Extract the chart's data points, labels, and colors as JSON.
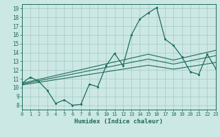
{
  "xlabel": "Humidex (Indice chaleur)",
  "background_color": "#cce8e4",
  "grid_color": "#aacccc",
  "line_color": "#1a6b5a",
  "x_data": [
    0,
    1,
    2,
    3,
    4,
    5,
    6,
    7,
    8,
    9,
    10,
    11,
    12,
    13,
    14,
    15,
    16,
    17,
    18,
    19,
    20,
    21,
    22,
    23
  ],
  "y_main": [
    10.5,
    11.2,
    10.7,
    9.7,
    8.2,
    8.6,
    8.0,
    8.1,
    10.4,
    10.1,
    12.5,
    13.9,
    12.5,
    16.0,
    17.8,
    18.5,
    19.1,
    15.5,
    14.8,
    13.5,
    11.8,
    11.5,
    13.8,
    12.2
  ],
  "y_reg_upper": [
    10.5,
    10.72,
    10.94,
    11.16,
    11.38,
    11.6,
    11.82,
    12.04,
    12.26,
    12.48,
    12.7,
    12.92,
    13.14,
    13.36,
    13.58,
    13.8,
    13.58,
    13.36,
    13.14,
    13.36,
    13.58,
    13.8,
    14.02,
    14.24
  ],
  "y_reg_mid": [
    10.4,
    10.59,
    10.78,
    10.97,
    11.16,
    11.35,
    11.54,
    11.73,
    11.92,
    12.11,
    12.3,
    12.49,
    12.68,
    12.87,
    13.06,
    13.25,
    13.06,
    12.87,
    12.68,
    12.87,
    13.06,
    13.25,
    13.44,
    13.63
  ],
  "y_reg_lower": [
    10.3,
    10.45,
    10.6,
    10.75,
    10.9,
    11.05,
    11.2,
    11.35,
    11.5,
    11.65,
    11.8,
    11.95,
    12.1,
    12.25,
    12.4,
    12.55,
    12.4,
    12.25,
    12.1,
    12.25,
    12.4,
    12.55,
    12.7,
    12.85
  ],
  "xlim": [
    0,
    23
  ],
  "ylim": [
    7.5,
    19.5
  ],
  "yticks": [
    8,
    9,
    10,
    11,
    12,
    13,
    14,
    15,
    16,
    17,
    18,
    19
  ],
  "xticks": [
    0,
    1,
    2,
    3,
    4,
    5,
    6,
    7,
    8,
    9,
    10,
    11,
    12,
    13,
    14,
    15,
    16,
    17,
    18,
    19,
    20,
    21,
    22,
    23
  ]
}
